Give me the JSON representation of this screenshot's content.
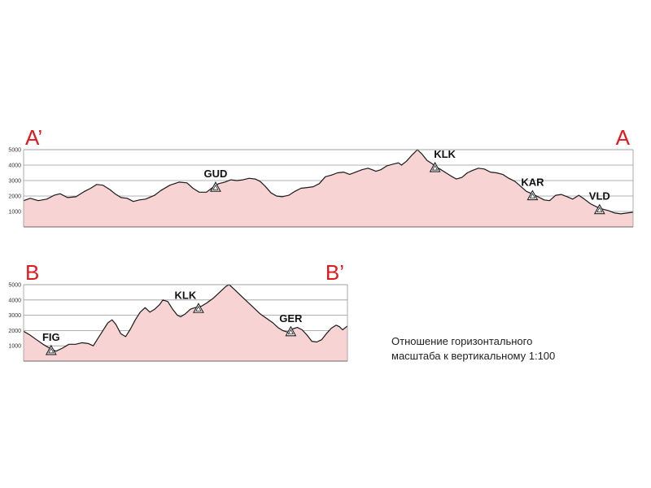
{
  "colors": {
    "fill": "#f7d3d3",
    "line": "#1a1a1a",
    "grid": "#9a9a9a",
    "label_red": "#e0191c",
    "marker_fill": "#ffffff"
  },
  "chart_data": [
    {
      "type": "area",
      "title": "",
      "left_label": "A’",
      "right_label": "A",
      "xlabel": "",
      "ylabel": "",
      "x_range": [
        0,
        100
      ],
      "ylim": [
        0,
        5000
      ],
      "y_ticks": [
        1000,
        2000,
        3000,
        4000,
        5000
      ],
      "grid": true,
      "profile": [
        [
          0,
          1700
        ],
        [
          1.1,
          1850
        ],
        [
          2.4,
          1700
        ],
        [
          3.8,
          1800
        ],
        [
          5,
          2050
        ],
        [
          6,
          2150
        ],
        [
          7.2,
          1900
        ],
        [
          8.6,
          1950
        ],
        [
          10,
          2300
        ],
        [
          11,
          2500
        ],
        [
          12,
          2750
        ],
        [
          13,
          2700
        ],
        [
          14.2,
          2400
        ],
        [
          15,
          2150
        ],
        [
          16,
          1900
        ],
        [
          17,
          1850
        ],
        [
          18,
          1650
        ],
        [
          19,
          1750
        ],
        [
          20,
          1800
        ],
        [
          21.5,
          2050
        ],
        [
          22.5,
          2350
        ],
        [
          24,
          2700
        ],
        [
          25.5,
          2900
        ],
        [
          26.8,
          2850
        ],
        [
          27.8,
          2500
        ],
        [
          28.8,
          2250
        ],
        [
          30,
          2250
        ],
        [
          31,
          2550
        ],
        [
          32,
          2800
        ],
        [
          33,
          2900
        ],
        [
          34,
          3050
        ],
        [
          35,
          3000
        ],
        [
          36,
          3050
        ],
        [
          37,
          3150
        ],
        [
          38,
          3100
        ],
        [
          38.8,
          2950
        ],
        [
          39.6,
          2650
        ],
        [
          40.6,
          2200
        ],
        [
          41.5,
          2000
        ],
        [
          42.4,
          1950
        ],
        [
          43.5,
          2050
        ],
        [
          44.5,
          2300
        ],
        [
          45.5,
          2500
        ],
        [
          46.5,
          2550
        ],
        [
          47.5,
          2600
        ],
        [
          48.5,
          2800
        ],
        [
          49.5,
          3250
        ],
        [
          50.5,
          3350
        ],
        [
          51.5,
          3500
        ],
        [
          52.5,
          3550
        ],
        [
          53.5,
          3400
        ],
        [
          54.5,
          3550
        ],
        [
          55.5,
          3700
        ],
        [
          56.5,
          3800
        ],
        [
          57.2,
          3700
        ],
        [
          57.8,
          3600
        ],
        [
          58.6,
          3700
        ],
        [
          59.6,
          3950
        ],
        [
          60.5,
          4050
        ],
        [
          61.5,
          4150
        ],
        [
          62,
          4000
        ],
        [
          62.8,
          4250
        ],
        [
          63.6,
          4600
        ],
        [
          64.6,
          5000
        ],
        [
          65.4,
          4700
        ],
        [
          66.2,
          4300
        ],
        [
          67,
          4100
        ],
        [
          67.8,
          3850
        ],
        [
          68.5,
          3700
        ],
        [
          69.3,
          3500
        ],
        [
          70.1,
          3300
        ],
        [
          71,
          3100
        ],
        [
          71.9,
          3200
        ],
        [
          72.8,
          3500
        ],
        [
          73.6,
          3650
        ],
        [
          74.6,
          3800
        ],
        [
          75.6,
          3750
        ],
        [
          76.6,
          3550
        ],
        [
          77.6,
          3500
        ],
        [
          78.6,
          3400
        ],
        [
          79.6,
          3150
        ],
        [
          80.6,
          2950
        ],
        [
          81.5,
          2650
        ],
        [
          82.5,
          2300
        ],
        [
          83.4,
          2150
        ],
        [
          84.4,
          1950
        ],
        [
          85.4,
          1750
        ],
        [
          86.3,
          1700
        ],
        [
          87.3,
          2050
        ],
        [
          88.2,
          2100
        ],
        [
          89.2,
          1950
        ],
        [
          90.1,
          1800
        ],
        [
          91.1,
          2050
        ],
        [
          92,
          1800
        ],
        [
          93,
          1500
        ],
        [
          94,
          1300
        ],
        [
          95,
          1150
        ],
        [
          96,
          1050
        ],
        [
          97,
          900
        ],
        [
          98,
          850
        ],
        [
          99,
          900
        ],
        [
          100,
          950
        ]
      ],
      "peaks": [
        {
          "label": "GUD",
          "x": 31.5
        },
        {
          "label": "KLK",
          "x": 67.5
        },
        {
          "label": "KAR",
          "x": 83.5
        },
        {
          "label": "VLD",
          "x": 94.5
        }
      ]
    },
    {
      "type": "area",
      "title": "",
      "left_label": "B",
      "right_label": "B’",
      "xlabel": "",
      "ylabel": "",
      "x_range": [
        0,
        100
      ],
      "ylim": [
        0,
        5000
      ],
      "y_ticks": [
        1000,
        2000,
        3000,
        4000,
        5000
      ],
      "grid": true,
      "profile": [
        [
          0,
          1950
        ],
        [
          2,
          1700
        ],
        [
          4,
          1400
        ],
        [
          6,
          1100
        ],
        [
          8,
          850
        ],
        [
          10,
          650
        ],
        [
          12,
          850
        ],
        [
          14,
          1100
        ],
        [
          16,
          1100
        ],
        [
          18,
          1200
        ],
        [
          20,
          1150
        ],
        [
          21.5,
          1000
        ],
        [
          23,
          1500
        ],
        [
          24.5,
          2000
        ],
        [
          26,
          2500
        ],
        [
          27.3,
          2700
        ],
        [
          28.5,
          2400
        ],
        [
          30,
          1800
        ],
        [
          31.5,
          1600
        ],
        [
          33,
          2100
        ],
        [
          34.5,
          2700
        ],
        [
          36,
          3200
        ],
        [
          37.5,
          3500
        ],
        [
          39,
          3200
        ],
        [
          40.5,
          3400
        ],
        [
          42,
          3700
        ],
        [
          43,
          4000
        ],
        [
          44.5,
          3900
        ],
        [
          46,
          3400
        ],
        [
          47.5,
          3000
        ],
        [
          48.5,
          2900
        ],
        [
          50,
          3100
        ],
        [
          51.5,
          3400
        ],
        [
          53,
          3500
        ],
        [
          55,
          3600
        ],
        [
          56.5,
          3800
        ],
        [
          58.5,
          4100
        ],
        [
          60.5,
          4500
        ],
        [
          62.5,
          4900
        ],
        [
          63.5,
          5000
        ],
        [
          65,
          4700
        ],
        [
          67,
          4300
        ],
        [
          69,
          3900
        ],
        [
          71,
          3500
        ],
        [
          73,
          3100
        ],
        [
          75,
          2800
        ],
        [
          77,
          2500
        ],
        [
          78.5,
          2200
        ],
        [
          80,
          2000
        ],
        [
          81.5,
          1900
        ],
        [
          83,
          2100
        ],
        [
          84.5,
          2200
        ],
        [
          86,
          2050
        ],
        [
          87.5,
          1700
        ],
        [
          89,
          1300
        ],
        [
          90.5,
          1250
        ],
        [
          92,
          1400
        ],
        [
          93.5,
          1800
        ],
        [
          95,
          2150
        ],
        [
          96.5,
          2350
        ],
        [
          97.5,
          2250
        ],
        [
          98.5,
          2050
        ],
        [
          100,
          2300
        ]
      ],
      "peaks": [
        {
          "label": "FIG",
          "x": 8.5
        },
        {
          "label": "KLK",
          "x": 54
        },
        {
          "label": "GER",
          "x": 82.5
        }
      ]
    }
  ],
  "note": {
    "line1": "Отношение горизонтального",
    "line2": "масштаба к вертикальному 1:100"
  }
}
